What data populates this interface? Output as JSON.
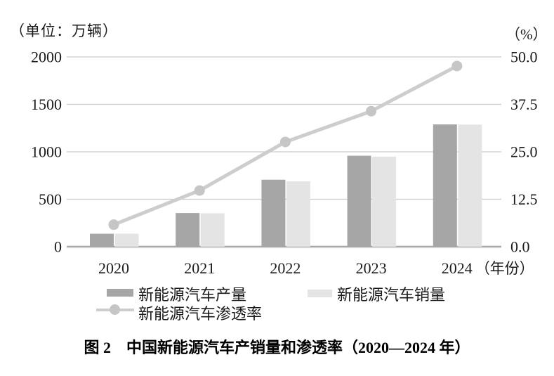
{
  "page": {
    "caption": "图 2　中国新能源汽车产销量和渗透率（2020—2024 年）"
  },
  "chart_data": {
    "type": "bar+line combo",
    "categories": [
      "2020",
      "2021",
      "2022",
      "2023",
      "2024"
    ],
    "x_axis_suffix": "（年份）",
    "series": [
      {
        "name": "新能源汽车产量",
        "type": "bar",
        "axis": "left",
        "color": "#a6a6a6",
        "values": [
          136.6,
          354.5,
          705.8,
          958.7,
          1288.8
        ]
      },
      {
        "name": "新能源汽车销量",
        "type": "bar",
        "axis": "left",
        "color": "#e4e4e4",
        "values": [
          136.7,
          352.1,
          688.7,
          949.5,
          1286.6
        ]
      },
      {
        "name": "新能源汽车渗透率",
        "type": "line",
        "axis": "right",
        "color": "#cdcdcd",
        "point_color": "#c6c6c6",
        "values": [
          5.8,
          14.8,
          27.6,
          35.7,
          47.6
        ]
      }
    ],
    "left_axis": {
      "unit": "（单位：万辆）",
      "ticks": [
        0,
        500,
        1000,
        1500,
        2000
      ],
      "range": [
        0,
        2000
      ]
    },
    "right_axis": {
      "unit": "（%）",
      "ticks": [
        "0.0",
        "12.5",
        "25.0",
        "37.5",
        "50.0"
      ],
      "range": [
        0,
        50
      ]
    },
    "grid": "horizontal",
    "legend_position": "bottom",
    "colors": {
      "gridline": "#cbcbcb",
      "axis_line": "#a6a6a6",
      "tick_text": "#1a1a1a"
    }
  }
}
